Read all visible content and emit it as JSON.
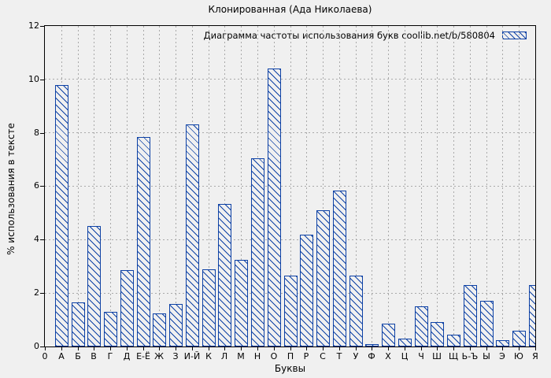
{
  "chart_data": {
    "type": "bar",
    "title": "Клонированная (Ада Николаева)",
    "legend": "Диаграмма частоты использования букв coollib.net/b/580804",
    "legend_position": "top-right-inside",
    "xlabel": "Буквы",
    "ylabel": "% использования в тексте",
    "origin_label": "0",
    "categories": [
      "А",
      "Б",
      "В",
      "Г",
      "Д",
      "Е-Ё",
      "Ж",
      "З",
      "И-Й",
      "К",
      "Л",
      "М",
      "Н",
      "О",
      "П",
      "Р",
      "С",
      "Т",
      "У",
      "Ф",
      "Х",
      "Ц",
      "Ч",
      "Ш",
      "Щ",
      "Ь-Ъ",
      "Ы",
      "Э",
      "Ю",
      "Я"
    ],
    "values": [
      9.8,
      1.65,
      4.5,
      1.3,
      2.85,
      7.85,
      1.25,
      1.6,
      8.3,
      2.9,
      5.35,
      3.25,
      7.05,
      10.4,
      2.65,
      4.2,
      5.1,
      5.85,
      2.65,
      0.1,
      0.85,
      0.3,
      1.5,
      0.9,
      0.45,
      2.3,
      1.7,
      0.25,
      0.6,
      2.3
    ],
    "ylim": [
      0,
      12
    ],
    "yticks": [
      0,
      2,
      4,
      6,
      8,
      10,
      12
    ],
    "grid": true,
    "hatch_style": "diagonal-backslash",
    "colors": {
      "bar": "#0d41a5",
      "grid": "#a9a9a9",
      "frame": "#000000",
      "background": "#f0f0f0",
      "text": "#000000"
    }
  }
}
